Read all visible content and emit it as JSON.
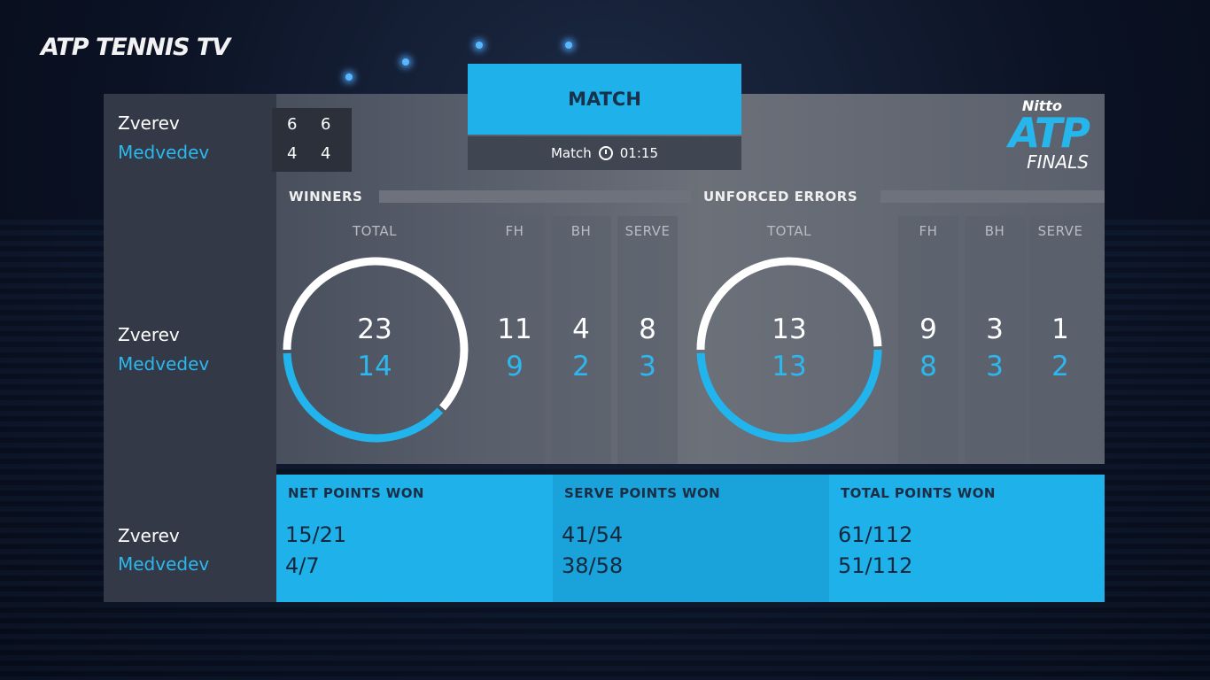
{
  "broadcaster": {
    "logo_atp": "ATP",
    "logo_name": "TENNIS TV"
  },
  "event_logo": {
    "line1": "Nitto",
    "line2": "ATP",
    "line3": "FINALS"
  },
  "players": {
    "p1": "Zverev",
    "p2": "Medvedev"
  },
  "scoreboard": {
    "p1_sets": [
      "6",
      "6"
    ],
    "p2_sets": [
      "4",
      "4"
    ]
  },
  "header": {
    "tab": "MATCH",
    "sub_label": "Match",
    "duration": "01:15"
  },
  "winners": {
    "title": "WINNERS",
    "total_label": "TOTAL",
    "p1_total": "23",
    "p2_total": "14",
    "p1_share": 0.62,
    "cols": [
      {
        "label": "FH",
        "p1": "11",
        "p2": "9"
      },
      {
        "label": "BH",
        "p1": "4",
        "p2": "2"
      },
      {
        "label": "SERVE",
        "p1": "8",
        "p2": "3"
      }
    ]
  },
  "errors": {
    "title": "UNFORCED ERRORS",
    "total_label": "TOTAL",
    "p1_total": "13",
    "p2_total": "13",
    "p1_share": 0.5,
    "cols": [
      {
        "label": "FH",
        "p1": "9",
        "p2": "8"
      },
      {
        "label": "BH",
        "p1": "3",
        "p2": "3"
      },
      {
        "label": "SERVE",
        "p1": "1",
        "p2": "2"
      }
    ]
  },
  "points": [
    {
      "title": "NET POINTS WON",
      "p1": "15/21",
      "p2": "4/7",
      "color": "#1fb1ea"
    },
    {
      "title": "SERVE POINTS WON",
      "p1": "41/54",
      "p2": "38/58",
      "color": "#1aa3da"
    },
    {
      "title": "TOTAL POINTS WON",
      "p1": "61/112",
      "p2": "51/112",
      "color": "#1fb1ea"
    }
  ],
  "colors": {
    "accent": "#1fb1ea",
    "p2_text": "#2cb8ee"
  }
}
